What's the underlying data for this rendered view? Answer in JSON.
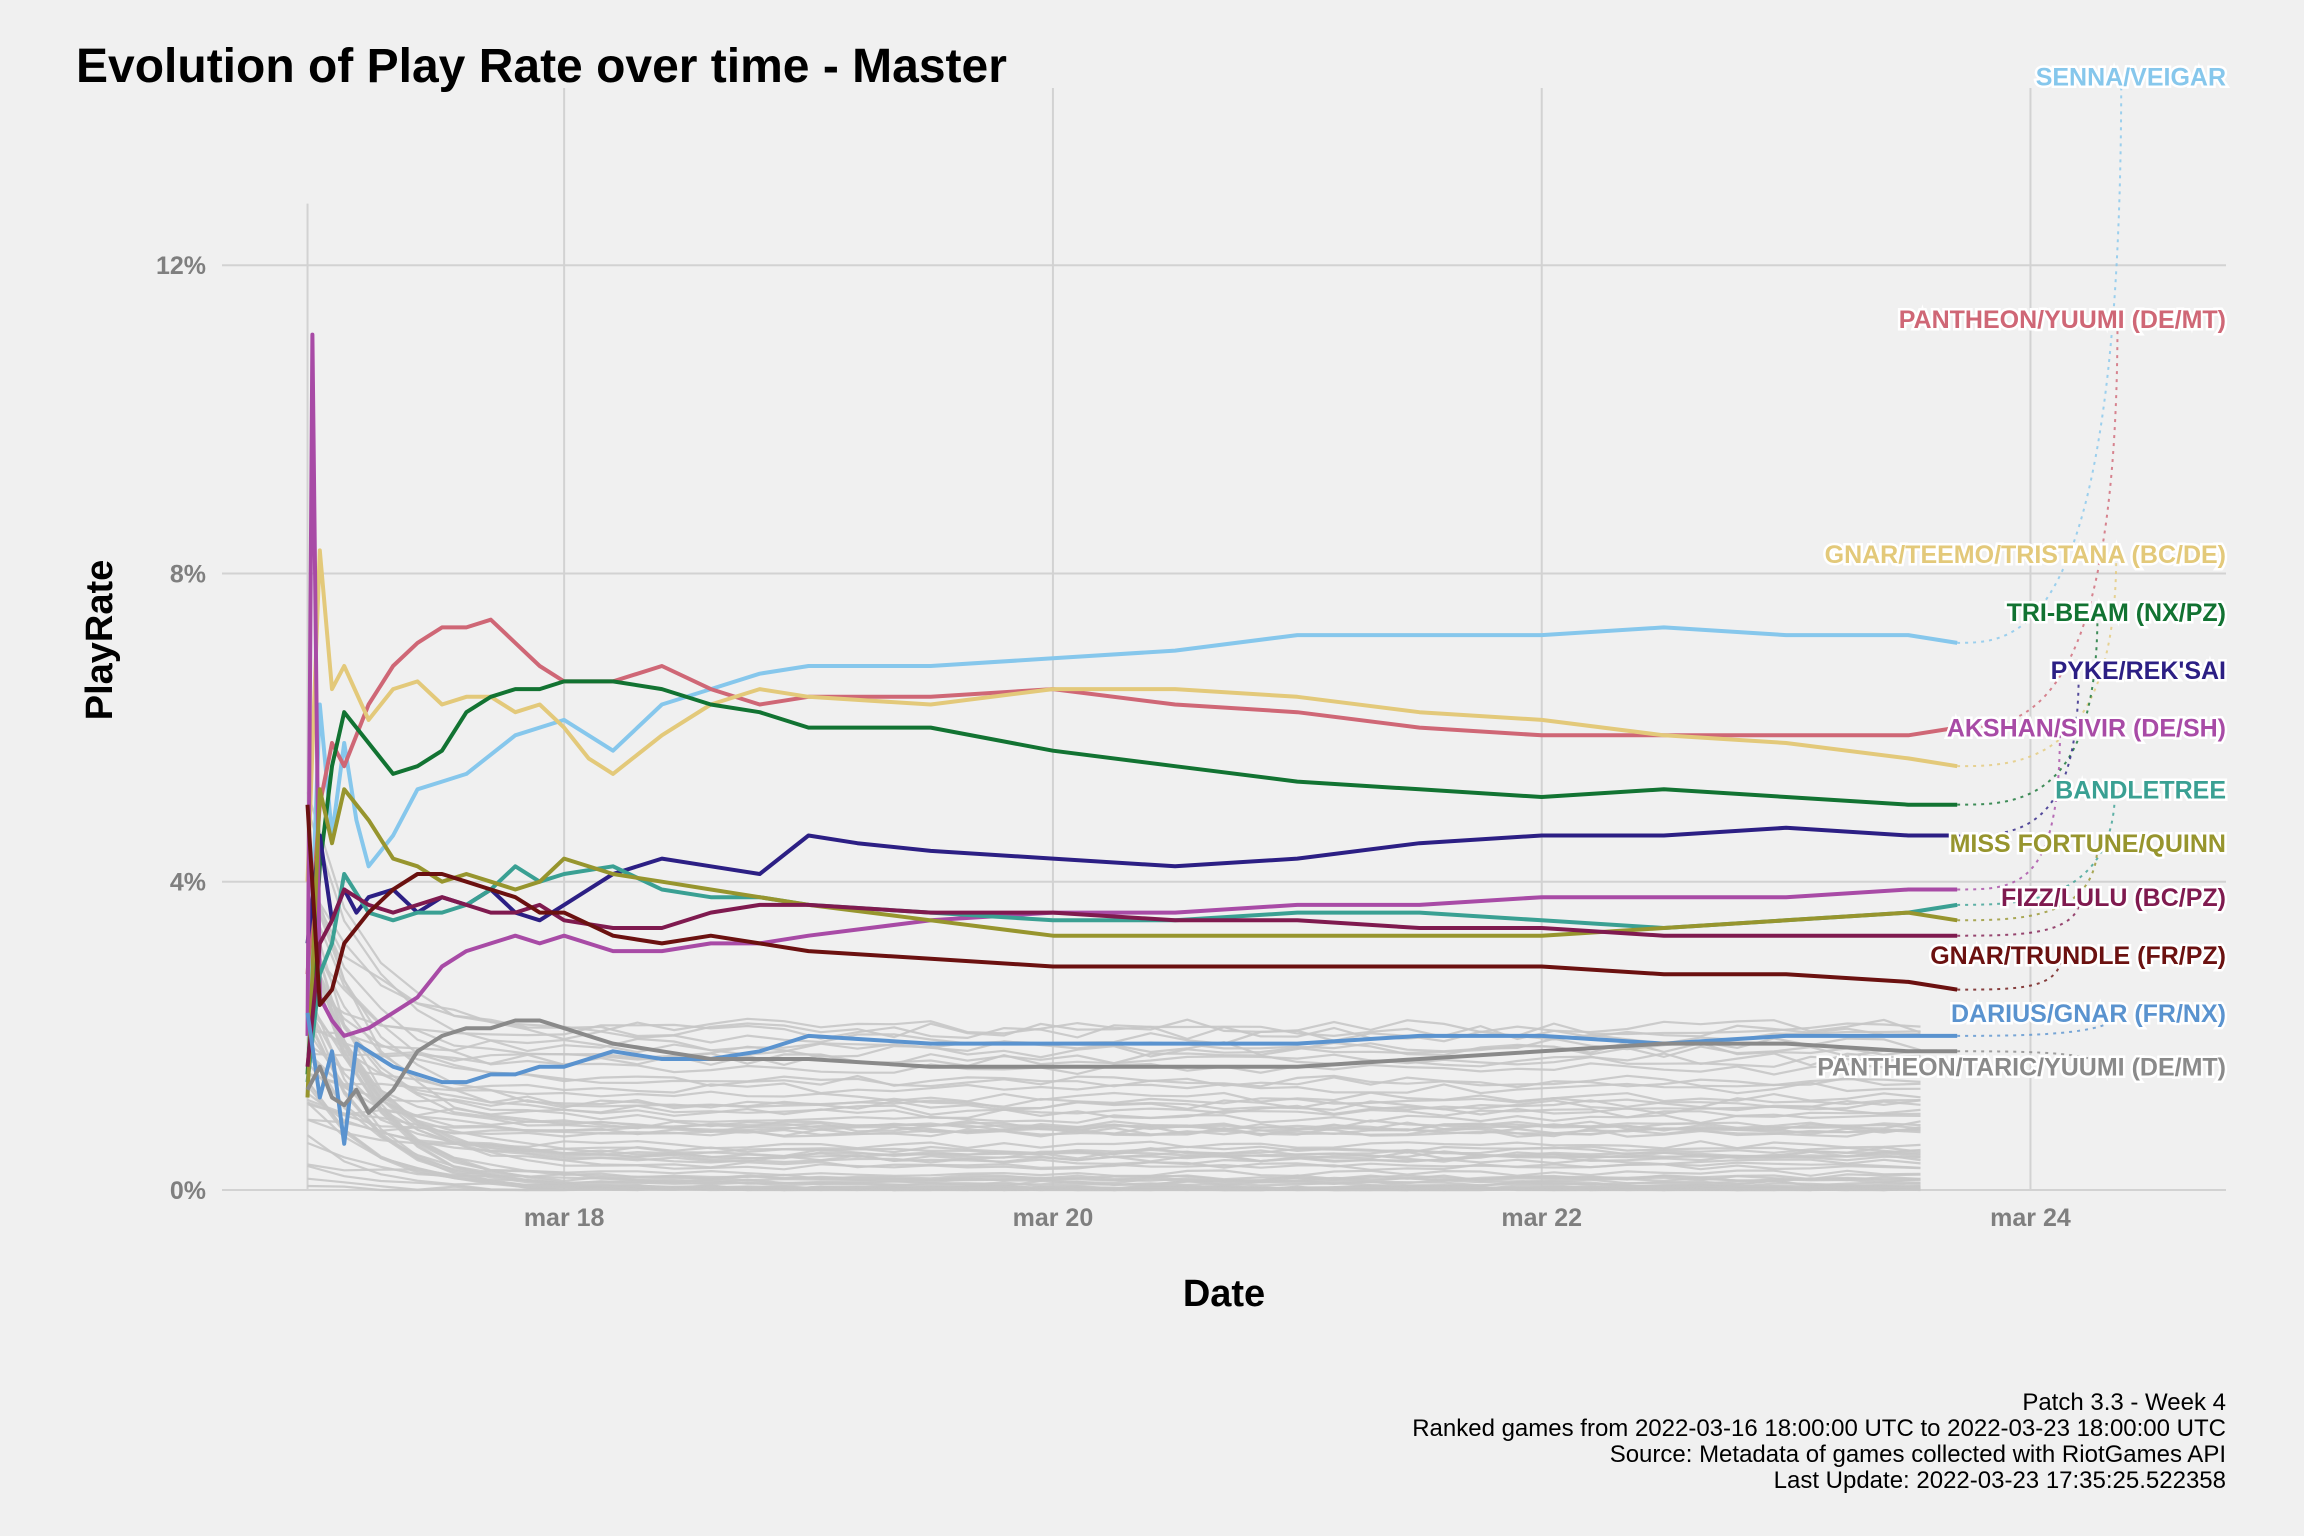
{
  "chart_data": {
    "type": "line",
    "title": "Evolution of Play Rate over time - Master",
    "xlabel": "Date",
    "ylabel": "PlayRate",
    "x_ticks": [
      "mar 18",
      "mar 20",
      "mar 22",
      "mar 24"
    ],
    "y_ticks": [
      "0%",
      "4%",
      "8%",
      "12%"
    ],
    "xlim": [
      -0.4,
      7.8
    ],
    "ylim": [
      0,
      14.3
    ],
    "grid": true,
    "legend": "direct labels at right",
    "caption": [
      "Patch 3.3 - Week 4",
      "Ranked games from 2022-03-16 18:00:00 UTC to 2022-03-23 18:00:00 UTC",
      "Source: Metadata of games collected with RiotGames API",
      "Last Update: 2022-03-23 17:35:25.522358"
    ],
    "x_units": "days since mar 17 00:00 (2022)",
    "series": [
      {
        "name": "SENNA/VEIGAR",
        "color": "#86c7ec",
        "label_y": 14.45,
        "x": [
          -0.05,
          0.0,
          0.05,
          0.1,
          0.15,
          0.2,
          0.3,
          0.4,
          0.5,
          0.6,
          0.8,
          1.0,
          1.2,
          1.4,
          1.6,
          1.8,
          2.0,
          2.5,
          3.0,
          3.5,
          4.0,
          4.5,
          5.0,
          5.5,
          6.0,
          6.5,
          6.7
        ],
        "y": [
          2.0,
          6.3,
          4.6,
          5.8,
          4.8,
          4.2,
          4.6,
          5.2,
          5.3,
          5.4,
          5.9,
          6.1,
          5.7,
          6.3,
          6.5,
          6.7,
          6.8,
          6.8,
          6.9,
          7.0,
          7.2,
          7.2,
          7.2,
          7.3,
          7.2,
          7.2,
          7.1
        ]
      },
      {
        "name": "PANTHEON/YUUMI (DE/MT)",
        "color": "#cf6776",
        "label_y": 11.3,
        "x": [
          -0.05,
          0.0,
          0.05,
          0.1,
          0.2,
          0.3,
          0.4,
          0.5,
          0.6,
          0.7,
          0.8,
          0.9,
          1.0,
          1.2,
          1.4,
          1.6,
          1.8,
          2.0,
          2.5,
          3.0,
          3.5,
          4.0,
          4.5,
          5.0,
          5.5,
          6.0,
          6.5,
          6.7
        ],
        "y": [
          2.8,
          5.0,
          5.8,
          5.5,
          6.3,
          6.8,
          7.1,
          7.3,
          7.3,
          7.4,
          7.1,
          6.8,
          6.6,
          6.6,
          6.8,
          6.5,
          6.3,
          6.4,
          6.4,
          6.5,
          6.3,
          6.2,
          6.0,
          5.9,
          5.9,
          5.9,
          5.9,
          6.0
        ]
      },
      {
        "name": "GNAR/TEEMO/TRISTANA (BC/DE)",
        "color": "#e3c97a",
        "label_y": 8.25,
        "x": [
          -0.05,
          0.0,
          0.05,
          0.1,
          0.2,
          0.3,
          0.4,
          0.5,
          0.6,
          0.7,
          0.8,
          0.9,
          1.0,
          1.1,
          1.2,
          1.4,
          1.6,
          1.8,
          2.0,
          2.5,
          3.0,
          3.5,
          4.0,
          4.5,
          5.0,
          5.5,
          6.0,
          6.5,
          6.7
        ],
        "y": [
          4.0,
          8.3,
          6.5,
          6.8,
          6.1,
          6.5,
          6.6,
          6.3,
          6.4,
          6.4,
          6.2,
          6.3,
          6.0,
          5.6,
          5.4,
          5.9,
          6.3,
          6.5,
          6.4,
          6.3,
          6.5,
          6.5,
          6.4,
          6.2,
          6.1,
          5.9,
          5.8,
          5.6,
          5.5
        ]
      },
      {
        "name": "TRI-BEAM (NX/PZ)",
        "color": "#127332",
        "label_y": 7.5,
        "x": [
          -0.05,
          0.0,
          0.05,
          0.1,
          0.2,
          0.3,
          0.4,
          0.5,
          0.6,
          0.7,
          0.8,
          0.9,
          1.0,
          1.2,
          1.4,
          1.6,
          1.8,
          2.0,
          2.5,
          3.0,
          3.5,
          4.0,
          4.5,
          5.0,
          5.5,
          6.0,
          6.5,
          6.7
        ],
        "y": [
          1.5,
          4.2,
          5.5,
          6.2,
          5.8,
          5.4,
          5.5,
          5.7,
          6.2,
          6.4,
          6.5,
          6.5,
          6.6,
          6.6,
          6.5,
          6.3,
          6.2,
          6.0,
          6.0,
          5.7,
          5.5,
          5.3,
          5.2,
          5.1,
          5.2,
          5.1,
          5.0,
          5.0
        ]
      },
      {
        "name": "PYKE/REK'SAI",
        "color": "#2c1f84",
        "label_y": 6.75,
        "x": [
          -0.05,
          0.0,
          0.05,
          0.1,
          0.15,
          0.2,
          0.3,
          0.4,
          0.5,
          0.6,
          0.7,
          0.8,
          0.9,
          1.0,
          1.2,
          1.4,
          1.6,
          1.8,
          2.0,
          2.2,
          2.5,
          3.0,
          3.5,
          4.0,
          4.5,
          5.0,
          5.5,
          6.0,
          6.5,
          6.7
        ],
        "y": [
          3.2,
          4.6,
          3.5,
          3.9,
          3.6,
          3.8,
          3.9,
          3.6,
          3.8,
          3.7,
          3.9,
          3.6,
          3.5,
          3.7,
          4.1,
          4.3,
          4.2,
          4.1,
          4.6,
          4.5,
          4.4,
          4.3,
          4.2,
          4.3,
          4.5,
          4.6,
          4.6,
          4.7,
          4.6,
          4.6
        ]
      },
      {
        "name": "AKSHAN/SIVIR (DE/SH)",
        "color": "#a84ba6",
        "label_y": 6.0,
        "x": [
          -0.05,
          -0.03,
          0.0,
          0.05,
          0.1,
          0.2,
          0.3,
          0.4,
          0.5,
          0.6,
          0.7,
          0.8,
          0.9,
          1.0,
          1.2,
          1.4,
          1.6,
          1.8,
          2.0,
          2.5,
          3.0,
          3.5,
          4.0,
          4.5,
          5.0,
          5.5,
          6.0,
          6.5,
          6.7
        ],
        "y": [
          2.0,
          11.1,
          2.5,
          2.2,
          2.0,
          2.1,
          2.3,
          2.5,
          2.9,
          3.1,
          3.2,
          3.3,
          3.2,
          3.3,
          3.1,
          3.1,
          3.2,
          3.2,
          3.3,
          3.5,
          3.6,
          3.6,
          3.7,
          3.7,
          3.8,
          3.8,
          3.8,
          3.9,
          3.9
        ]
      },
      {
        "name": "BANDLETREE",
        "color": "#3aa093",
        "label_y": 5.2,
        "x": [
          -0.05,
          0.0,
          0.05,
          0.1,
          0.2,
          0.3,
          0.4,
          0.5,
          0.6,
          0.7,
          0.8,
          0.9,
          1.0,
          1.2,
          1.4,
          1.6,
          1.8,
          2.0,
          2.5,
          3.0,
          3.5,
          4.0,
          4.5,
          5.0,
          5.5,
          6.0,
          6.5,
          6.7
        ],
        "y": [
          1.4,
          2.8,
          3.2,
          4.1,
          3.6,
          3.5,
          3.6,
          3.6,
          3.7,
          3.9,
          4.2,
          4.0,
          4.1,
          4.2,
          3.9,
          3.8,
          3.8,
          3.7,
          3.6,
          3.5,
          3.5,
          3.6,
          3.6,
          3.5,
          3.4,
          3.5,
          3.6,
          3.7
        ]
      },
      {
        "name": "MISS FORTUNE/QUINN",
        "color": "#97952e",
        "label_y": 4.5,
        "x": [
          -0.05,
          0.0,
          0.05,
          0.1,
          0.2,
          0.3,
          0.4,
          0.5,
          0.6,
          0.7,
          0.8,
          0.9,
          1.0,
          1.2,
          1.4,
          1.6,
          1.8,
          2.0,
          2.5,
          3.0,
          3.5,
          4.0,
          4.5,
          5.0,
          5.5,
          6.0,
          6.5,
          6.7
        ],
        "y": [
          1.2,
          5.2,
          4.5,
          5.2,
          4.8,
          4.3,
          4.2,
          4.0,
          4.1,
          4.0,
          3.9,
          4.0,
          4.3,
          4.1,
          4.0,
          3.9,
          3.8,
          3.7,
          3.5,
          3.3,
          3.3,
          3.3,
          3.3,
          3.3,
          3.4,
          3.5,
          3.6,
          3.5
        ]
      },
      {
        "name": "FIZZ/LULU (BC/PZ)",
        "color": "#7f1a4f",
        "label_y": 3.8,
        "x": [
          -0.05,
          0.0,
          0.05,
          0.1,
          0.2,
          0.3,
          0.4,
          0.5,
          0.6,
          0.7,
          0.8,
          0.9,
          1.0,
          1.2,
          1.4,
          1.6,
          1.8,
          2.0,
          2.5,
          3.0,
          3.5,
          4.0,
          4.5,
          5.0,
          5.5,
          6.0,
          6.5,
          6.7
        ],
        "y": [
          1.6,
          3.2,
          3.5,
          3.9,
          3.7,
          3.6,
          3.7,
          3.8,
          3.7,
          3.6,
          3.6,
          3.7,
          3.5,
          3.4,
          3.4,
          3.6,
          3.7,
          3.7,
          3.6,
          3.6,
          3.5,
          3.5,
          3.4,
          3.4,
          3.3,
          3.3,
          3.3,
          3.3
        ]
      },
      {
        "name": "GNAR/TRUNDLE (FR/PZ)",
        "color": "#6b1110",
        "label_y": 3.05,
        "x": [
          -0.05,
          0.0,
          0.05,
          0.1,
          0.2,
          0.3,
          0.4,
          0.5,
          0.6,
          0.7,
          0.8,
          0.9,
          1.0,
          1.2,
          1.4,
          1.6,
          1.8,
          2.0,
          2.5,
          3.0,
          3.5,
          4.0,
          4.5,
          5.0,
          5.5,
          6.0,
          6.5,
          6.7
        ],
        "y": [
          5.0,
          2.4,
          2.6,
          3.2,
          3.6,
          3.9,
          4.1,
          4.1,
          4.0,
          3.9,
          3.8,
          3.6,
          3.6,
          3.3,
          3.2,
          3.3,
          3.2,
          3.1,
          3.0,
          2.9,
          2.9,
          2.9,
          2.9,
          2.9,
          2.8,
          2.8,
          2.7,
          2.6
        ]
      },
      {
        "name": "DARIUS/GNAR (FR/NX)",
        "color": "#5a93cf",
        "label_y": 2.3,
        "x": [
          -0.05,
          0.0,
          0.05,
          0.1,
          0.15,
          0.2,
          0.3,
          0.4,
          0.5,
          0.6,
          0.7,
          0.8,
          0.9,
          1.0,
          1.2,
          1.4,
          1.6,
          1.8,
          2.0,
          2.5,
          3.0,
          3.5,
          4.0,
          4.5,
          5.0,
          5.5,
          6.0,
          6.5,
          6.7
        ],
        "y": [
          2.3,
          1.2,
          1.8,
          0.6,
          1.9,
          1.8,
          1.6,
          1.5,
          1.4,
          1.4,
          1.5,
          1.5,
          1.6,
          1.6,
          1.8,
          1.7,
          1.7,
          1.8,
          2.0,
          1.9,
          1.9,
          1.9,
          1.9,
          2.0,
          2.0,
          1.9,
          2.0,
          2.0,
          2.0
        ]
      },
      {
        "name": "PANTHEON/TARIC/YUUMI (DE/MT)",
        "color": "#8a8a8a",
        "label_y": 1.6,
        "x": [
          -0.05,
          0.0,
          0.05,
          0.1,
          0.15,
          0.2,
          0.3,
          0.4,
          0.5,
          0.6,
          0.7,
          0.8,
          0.9,
          1.0,
          1.2,
          1.4,
          1.6,
          1.8,
          2.0,
          2.5,
          3.0,
          3.5,
          4.0,
          4.5,
          5.0,
          5.5,
          6.0,
          6.5,
          6.7
        ],
        "y": [
          1.3,
          1.6,
          1.2,
          1.1,
          1.3,
          1.0,
          1.3,
          1.8,
          2.0,
          2.1,
          2.1,
          2.2,
          2.2,
          2.1,
          1.9,
          1.8,
          1.7,
          1.7,
          1.7,
          1.6,
          1.6,
          1.6,
          1.6,
          1.7,
          1.8,
          1.9,
          1.9,
          1.8,
          1.8
        ]
      }
    ]
  }
}
